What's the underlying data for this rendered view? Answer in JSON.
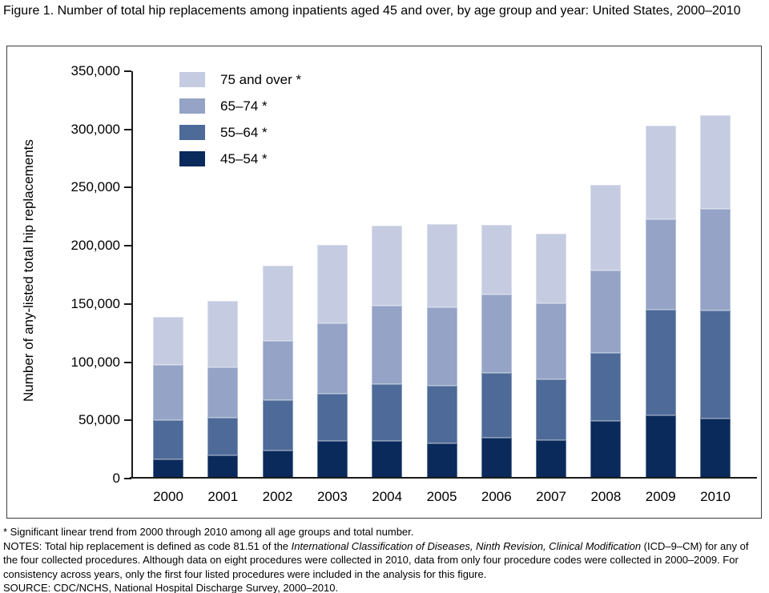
{
  "title": "Figure 1. Number of total hip replacements among inpatients aged 45 and over, by age group and year: United States, 2000–2010",
  "footnotes": {
    "asterisk_note": "* Significant linear trend from 2000 through 2010 among all age groups and total number.",
    "notes_prefix": "NOTES: Total hip replacement is defined as code 81.51 of the ",
    "notes_italic": "International Classification of Diseases, Ninth Revision, Clinical Modification",
    "notes_suffix": " (ICD–9–CM) for any of the four collected procedures. Although data on eight procedures were collected in 2010, data from only four procedure codes were collected in 2000–2009. For consistency across years, only the first four listed procedures were included in the analysis for this figure.",
    "source": "SOURCE: CDC/NCHS, National Hospital Discharge Survey, 2000–2010."
  },
  "chart_data": {
    "type": "bar",
    "stacked": true,
    "title": "Figure 1. Number of total hip replacements among inpatients aged 45 and over, by age group and year: United States, 2000–2010",
    "categories": [
      "2000",
      "2001",
      "2002",
      "2003",
      "2004",
      "2005",
      "2006",
      "2007",
      "2008",
      "2009",
      "2010"
    ],
    "series": [
      {
        "name": "45–54",
        "legend_label": "45–54 *",
        "color": "#0a2a5b",
        "values": [
          16500,
          20000,
          24000,
          32500,
          32500,
          30500,
          35000,
          33000,
          49500,
          54500,
          51500
        ]
      },
      {
        "name": "55–64",
        "legend_label": "55–64 *",
        "color": "#4d6a98",
        "values": [
          33500,
          32500,
          43500,
          40500,
          49000,
          49500,
          56000,
          52000,
          58500,
          90500,
          92500
        ]
      },
      {
        "name": "65–74",
        "legend_label": "65–74 *",
        "color": "#94a3c6",
        "values": [
          47500,
          43500,
          51000,
          60500,
          67500,
          67500,
          67500,
          65000,
          71000,
          78000,
          87500
        ]
      },
      {
        "name": "75 and over",
        "legend_label": "75 and over *",
        "color": "#c5cce1",
        "values": [
          41500,
          57000,
          64500,
          67500,
          69000,
          71500,
          59500,
          60000,
          73500,
          80500,
          80500
        ]
      }
    ],
    "legend_order_top_to_bottom": [
      "75 and over",
      "65–74",
      "55–64",
      "45–54"
    ],
    "legend_position": "inside-top-left",
    "xlabel": "",
    "ylabel": "Number of any-listed total hip replacements",
    "ylim": [
      0,
      350000
    ],
    "ytick_interval": 50000,
    "ytick_labels": [
      "0",
      "50,000",
      "100,000",
      "150,000",
      "200,000",
      "250,000",
      "300,000",
      "350,000"
    ],
    "grid": false
  }
}
